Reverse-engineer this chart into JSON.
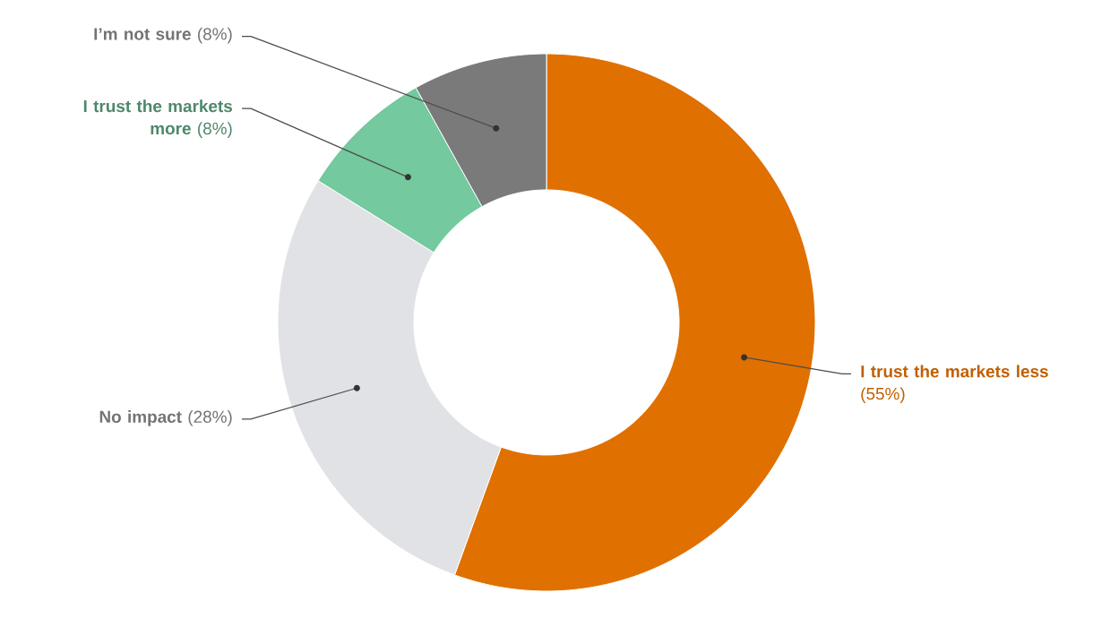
{
  "chart_data": {
    "type": "donut",
    "categories": [
      "I trust the markets less",
      "No impact",
      "I trust the markets more",
      "I’m not sure"
    ],
    "values": [
      55,
      28,
      8,
      8
    ],
    "value_labels": [
      "(55%)",
      "(28%)",
      "(8%)",
      "(8%)"
    ],
    "colors": [
      "#e07000",
      "#e1e2e6",
      "#74c99e",
      "#7a7a7a"
    ]
  }
}
